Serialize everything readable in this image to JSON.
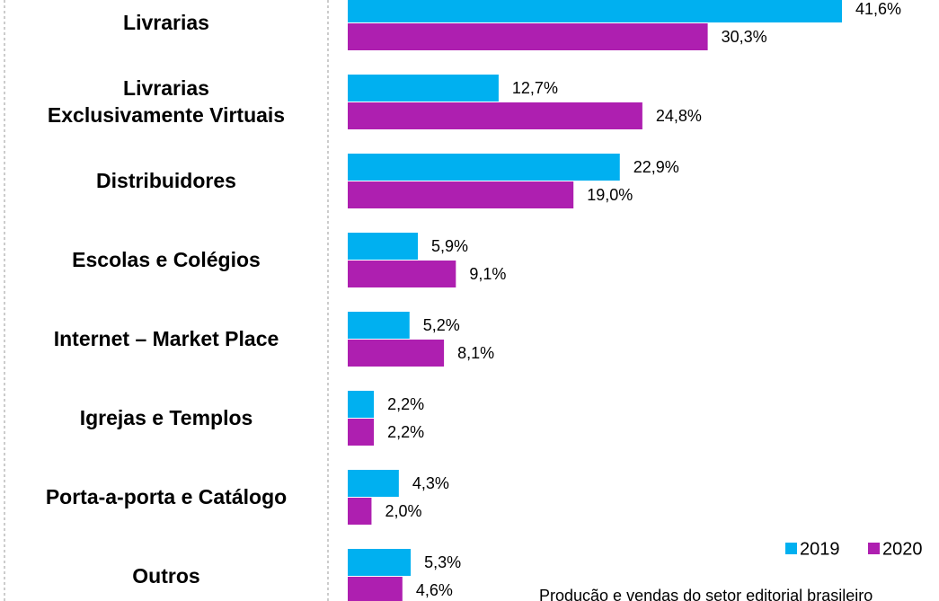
{
  "chart_data": {
    "type": "bar",
    "orientation": "horizontal",
    "categories": [
      "Livrarias",
      "Livrarias\nExclusivamente Virtuais",
      "Distribuidores",
      "Escolas e Colégios",
      "Internet – Market Place",
      "Igrejas e Templos",
      "Porta-a-porta e Catálogo",
      "Outros"
    ],
    "series": [
      {
        "name": "2019",
        "color": "#00b0f0",
        "values": [
          41.6,
          12.7,
          22.9,
          5.9,
          5.2,
          2.2,
          4.3,
          5.3
        ],
        "value_labels": [
          "41,6%",
          "12,7%",
          "22,9%",
          "5,9%",
          "5,2%",
          "2,2%",
          "4,3%",
          "5,3%"
        ]
      },
      {
        "name": "2020",
        "color": "#ae1fb0",
        "values": [
          30.3,
          24.8,
          19.0,
          9.1,
          8.1,
          2.2,
          2.0,
          4.6
        ],
        "value_labels": [
          "30,3%",
          "24,8%",
          "19,0%",
          "9,1%",
          "8,1%",
          "2,2%",
          "2,0%",
          "4,6%"
        ]
      }
    ],
    "legend": "bottom-right",
    "source": "Produção e vendas do setor editorial brasileiro"
  }
}
